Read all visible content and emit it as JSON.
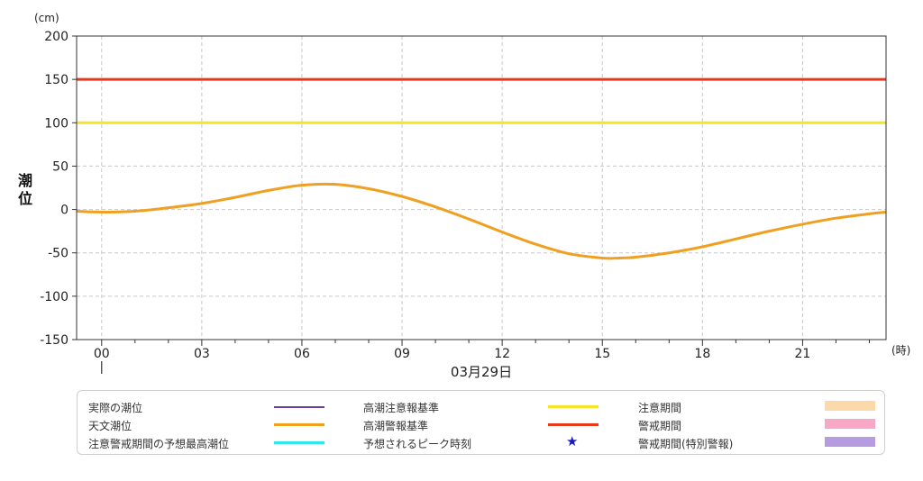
{
  "chart_data": {
    "type": "line",
    "ylabel": "潮位",
    "yunit": "(cm)",
    "xunit": "(時)",
    "date_label": "03月29日",
    "ylim": [
      -150,
      200
    ],
    "xlim": [
      -0.75,
      23.5
    ],
    "yticks": [
      200,
      150,
      100,
      50,
      0,
      -50,
      -100,
      -150
    ],
    "xticks": [
      "00",
      "03",
      "06",
      "09",
      "12",
      "15",
      "18",
      "21"
    ],
    "xtick_hours": [
      0,
      3,
      6,
      9,
      12,
      15,
      18,
      21
    ],
    "grid": true,
    "colors": {
      "alarm": "#e8381b",
      "caution": "#f6e32a",
      "astro": "#f0a020",
      "actual": "#6b3fa0",
      "forecast": "#2ee8ee",
      "peak": "#1a1ab8"
    },
    "thresholds": [
      {
        "name": "高潮警報基準",
        "value": 150,
        "color": "#e8381b"
      },
      {
        "name": "高潮注意報基準",
        "value": 100,
        "color": "#f6e32a"
      }
    ],
    "series": [
      {
        "name": "天文潮位",
        "color": "#f0a020",
        "x": [
          -0.75,
          0,
          1,
          2,
          3,
          4,
          5,
          6,
          7,
          8,
          9,
          10,
          11,
          12,
          13,
          14,
          15,
          15.5,
          16,
          17,
          18,
          19,
          20,
          21,
          22,
          23,
          23.5
        ],
        "values": [
          -2,
          -3,
          -2,
          2,
          7,
          14,
          22,
          28,
          29,
          24,
          15,
          3,
          -11,
          -26,
          -40,
          -51,
          -56,
          -56,
          -55,
          -50,
          -43,
          -34,
          -25,
          -17,
          -10,
          -5,
          -3
        ]
      }
    ]
  },
  "legend": {
    "items": [
      {
        "label": "実際の潮位",
        "symbol": "line",
        "color": "#6b3fa0"
      },
      {
        "label": "天文潮位",
        "symbol": "line",
        "color": "#f0a020"
      },
      {
        "label": "注意警戒期間の予想最高潮位",
        "symbol": "line",
        "color": "#2ee8ee"
      },
      {
        "label": "高潮注意報基準",
        "symbol": "line",
        "color": "#f6e32a"
      },
      {
        "label": "高潮警報基準",
        "symbol": "line",
        "color": "#e8381b"
      },
      {
        "label": "予想されるピーク時刻",
        "symbol": "star",
        "color": "#1a1ab8"
      },
      {
        "label": "注意期間",
        "symbol": "box",
        "color": "#fcd9ab"
      },
      {
        "label": "警戒期間",
        "symbol": "box",
        "color": "#f8a8c4"
      },
      {
        "label": "警戒期間(特別警報)",
        "symbol": "box",
        "color": "#b79be0"
      }
    ]
  }
}
